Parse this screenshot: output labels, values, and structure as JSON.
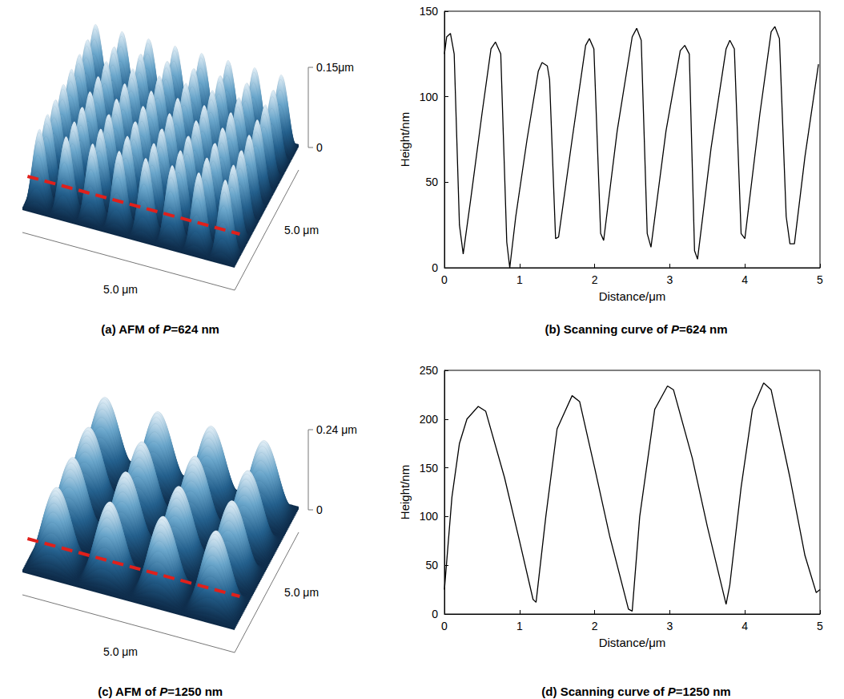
{
  "chart_data": [
    {
      "type": "afm_surface",
      "title": "(a) AFM of P=624 nm",
      "zlim": [
        0,
        0.15
      ],
      "zticks": [
        0,
        {
          "value": 0.15,
          "label": "0.15μm"
        }
      ],
      "x_label": "5.0 μm",
      "y_label": "5.0 μm",
      "scan_line_color": "#e0201b"
    },
    {
      "type": "line",
      "title": "(b) Scanning curve of P=624 nm",
      "x_label": "Distance/μm",
      "y_label": "Height/nm",
      "x": [
        0,
        0.03,
        0.08,
        0.13,
        0.2,
        0.25,
        0.35,
        0.5,
        0.62,
        0.68,
        0.75,
        0.83,
        0.87,
        0.95,
        1.1,
        1.25,
        1.3,
        1.37,
        1.4,
        1.48,
        1.52,
        1.7,
        1.88,
        1.93,
        1.99,
        2.08,
        2.12,
        2.3,
        2.5,
        2.56,
        2.62,
        2.7,
        2.75,
        2.95,
        3.14,
        3.2,
        3.26,
        3.33,
        3.37,
        3.55,
        3.75,
        3.8,
        3.86,
        3.95,
        4.0,
        4.2,
        4.35,
        4.4,
        4.46,
        4.55,
        4.6,
        4.66,
        4.8,
        4.98
      ],
      "values": [
        125,
        135,
        137,
        125,
        25,
        8,
        40,
        90,
        128,
        132,
        125,
        15,
        0,
        30,
        75,
        115,
        120,
        118,
        110,
        17,
        18,
        75,
        130,
        134,
        128,
        20,
        16,
        80,
        135,
        140,
        133,
        20,
        12,
        80,
        127,
        130,
        125,
        10,
        5,
        70,
        128,
        133,
        128,
        20,
        17,
        90,
        138,
        141,
        134,
        30,
        14,
        14,
        65,
        119
      ],
      "color": "#000000",
      "xlim": [
        0,
        5
      ],
      "xticks": [
        0,
        1,
        2,
        3,
        4,
        5
      ],
      "ylim": [
        0,
        150
      ],
      "yticks": [
        0,
        50,
        100,
        150
      ],
      "grid": false
    },
    {
      "type": "afm_surface",
      "title": "(c) AFM of P=1250 nm",
      "zlim": [
        0,
        0.24
      ],
      "zticks": [
        0,
        {
          "value": 0.24,
          "label": "0.24 μm"
        }
      ],
      "x_label": "5.0 μm",
      "y_label": "5.0 μm",
      "scan_line_color": "#e0201b"
    },
    {
      "type": "line",
      "title": "(d) Scanning curve of P=1250 nm",
      "x_label": "Distance/μm",
      "y_label": "Height/nm",
      "x": [
        0,
        0.1,
        0.2,
        0.3,
        0.45,
        0.55,
        0.8,
        1.0,
        1.18,
        1.22,
        1.35,
        1.5,
        1.7,
        1.8,
        2.0,
        2.2,
        2.45,
        2.5,
        2.6,
        2.8,
        2.97,
        3.05,
        3.3,
        3.5,
        3.75,
        3.8,
        3.95,
        4.1,
        4.25,
        4.35,
        4.6,
        4.8,
        4.95,
        5.0
      ],
      "values": [
        25,
        120,
        175,
        200,
        213,
        208,
        140,
        75,
        15,
        12,
        100,
        190,
        224,
        218,
        150,
        80,
        5,
        3,
        100,
        210,
        234,
        230,
        160,
        90,
        10,
        30,
        130,
        210,
        237,
        230,
        140,
        60,
        22,
        25
      ],
      "color": "#000000",
      "xlim": [
        0,
        5
      ],
      "xticks": [
        0,
        1,
        2,
        3,
        4,
        5
      ],
      "ylim": [
        0,
        250
      ],
      "yticks": [
        0,
        50,
        100,
        150,
        200,
        250
      ],
      "grid": false
    }
  ]
}
